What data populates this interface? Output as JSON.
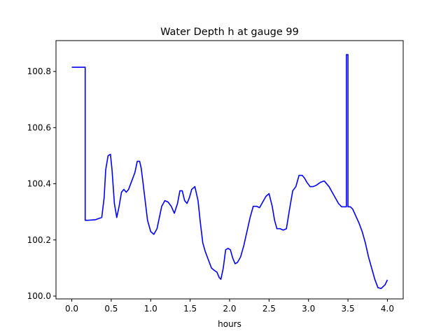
{
  "chart_data": {
    "type": "line",
    "title": "Water Depth h at gauge 99",
    "xlabel": "hours",
    "ylabel": "",
    "xlim": [
      -0.2,
      4.2
    ],
    "ylim": [
      99.99,
      100.91
    ],
    "xticks": [
      0.0,
      0.5,
      1.0,
      1.5,
      2.0,
      2.5,
      3.0,
      3.5,
      4.0
    ],
    "xtick_labels": [
      "0.0",
      "0.5",
      "1.0",
      "1.5",
      "2.0",
      "2.5",
      "3.0",
      "3.5",
      "4.0"
    ],
    "yticks": [
      100.0,
      100.2,
      100.4,
      100.6,
      100.8
    ],
    "ytick_labels": [
      "100.0",
      "100.2",
      "100.4",
      "100.6",
      "100.8"
    ],
    "grid": false,
    "series": [
      {
        "color": "#0000ff",
        "x": [
          0.0,
          0.17,
          0.17,
          0.2,
          0.3,
          0.38,
          0.41,
          0.43,
          0.46,
          0.49,
          0.51,
          0.54,
          0.57,
          0.6,
          0.63,
          0.66,
          0.69,
          0.72,
          0.76,
          0.8,
          0.83,
          0.86,
          0.88,
          0.9,
          0.93,
          0.96,
          1.0,
          1.04,
          1.08,
          1.11,
          1.14,
          1.18,
          1.22,
          1.26,
          1.3,
          1.34,
          1.37,
          1.4,
          1.43,
          1.46,
          1.49,
          1.52,
          1.56,
          1.6,
          1.63,
          1.66,
          1.69,
          1.73,
          1.77,
          1.8,
          1.84,
          1.87,
          1.89,
          1.92,
          1.95,
          1.98,
          2.01,
          2.04,
          2.07,
          2.1,
          2.14,
          2.18,
          2.22,
          2.26,
          2.3,
          2.34,
          2.38,
          2.42,
          2.46,
          2.5,
          2.54,
          2.57,
          2.6,
          2.64,
          2.68,
          2.72,
          2.76,
          2.8,
          2.84,
          2.88,
          2.92,
          2.95,
          2.98,
          3.02,
          3.06,
          3.1,
          3.15,
          3.2,
          3.23,
          3.26,
          3.3,
          3.34,
          3.38,
          3.42,
          3.45,
          3.48,
          3.48,
          3.5,
          3.5,
          3.53,
          3.56,
          3.6,
          3.64,
          3.68,
          3.72,
          3.76,
          3.8,
          3.84,
          3.88,
          3.92,
          3.95,
          3.97,
          4.0
        ],
        "y": [
          100.815,
          100.815,
          100.27,
          100.27,
          100.272,
          100.28,
          100.35,
          100.45,
          100.5,
          100.505,
          100.45,
          100.33,
          100.28,
          100.32,
          100.37,
          100.38,
          100.37,
          100.38,
          100.41,
          100.44,
          100.48,
          100.48,
          100.455,
          100.41,
          100.34,
          100.27,
          100.23,
          100.22,
          100.24,
          100.28,
          100.32,
          100.34,
          100.335,
          100.32,
          100.295,
          100.33,
          100.375,
          100.375,
          100.34,
          100.33,
          100.35,
          100.38,
          100.39,
          100.34,
          100.26,
          100.19,
          100.16,
          100.13,
          100.1,
          100.093,
          100.085,
          100.065,
          100.06,
          100.1,
          100.165,
          100.17,
          100.165,
          100.135,
          100.115,
          100.12,
          100.14,
          100.18,
          100.23,
          100.28,
          100.32,
          100.32,
          100.315,
          100.335,
          100.355,
          100.365,
          100.32,
          100.27,
          100.24,
          100.24,
          100.235,
          100.24,
          100.31,
          100.375,
          100.39,
          100.43,
          100.43,
          100.42,
          100.405,
          100.39,
          100.39,
          100.395,
          100.405,
          100.41,
          100.4,
          100.39,
          100.37,
          100.35,
          100.33,
          100.318,
          100.318,
          100.318,
          100.86,
          100.86,
          100.318,
          100.318,
          100.31,
          100.285,
          100.26,
          100.23,
          100.19,
          100.14,
          100.1,
          100.06,
          100.03,
          100.027,
          100.035,
          100.04,
          100.058
        ]
      }
    ]
  }
}
